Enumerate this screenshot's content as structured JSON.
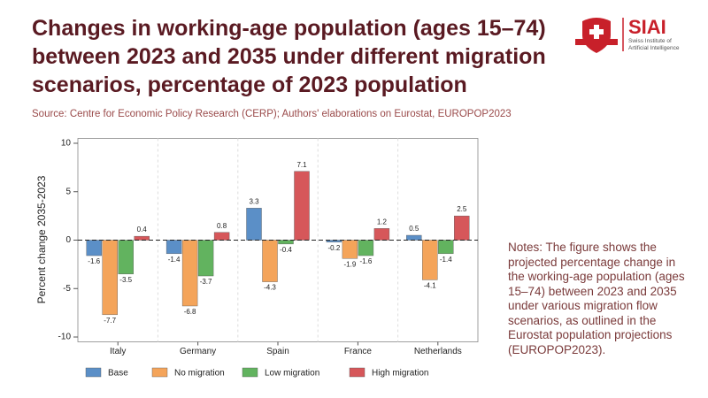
{
  "chart_data": {
    "type": "bar",
    "title": "Changes in working-age population (ages 15–74) between 2023 and 2035 under different migration scenarios, percentage of 2023 population",
    "source": "Source: Centre for Economic Policy Research (CERP); Authors' elaborations on Eurostat, EUROPOP2023",
    "y_label": "Percent change 2035-2023",
    "categories": [
      "Italy",
      "Germany",
      "Spain",
      "France",
      "Netherlands"
    ],
    "series": [
      {
        "name": "Base",
        "color": "#5b8fc7",
        "values": [
          -1.6,
          -1.4,
          3.3,
          -0.2,
          0.5
        ]
      },
      {
        "name": "No migration",
        "color": "#f4a45a",
        "values": [
          -7.7,
          -6.8,
          -4.3,
          -1.9,
          -4.1
        ]
      },
      {
        "name": "Low migration",
        "color": "#62b35f",
        "values": [
          -3.5,
          -3.7,
          -0.4,
          -1.6,
          -1.4
        ]
      },
      {
        "name": "High migration",
        "color": "#d6575a",
        "values": [
          0.4,
          0.8,
          7.1,
          1.2,
          2.5
        ]
      }
    ],
    "ylim": [
      -10.5,
      10.5
    ],
    "yticks": [
      -10,
      -5,
      0,
      5,
      10
    ],
    "notes": "Notes: The figure shows the projected percentage change in the working-age population (ages 15–74) between 2023 and 2035 under various migration flow scenarios, as outlined in the Eurostat population projections (EUROPOP2023)."
  },
  "logo": {
    "name": "SIAI",
    "tagline": [
      "Swiss Institute of",
      "Artificial Intelligence"
    ]
  }
}
